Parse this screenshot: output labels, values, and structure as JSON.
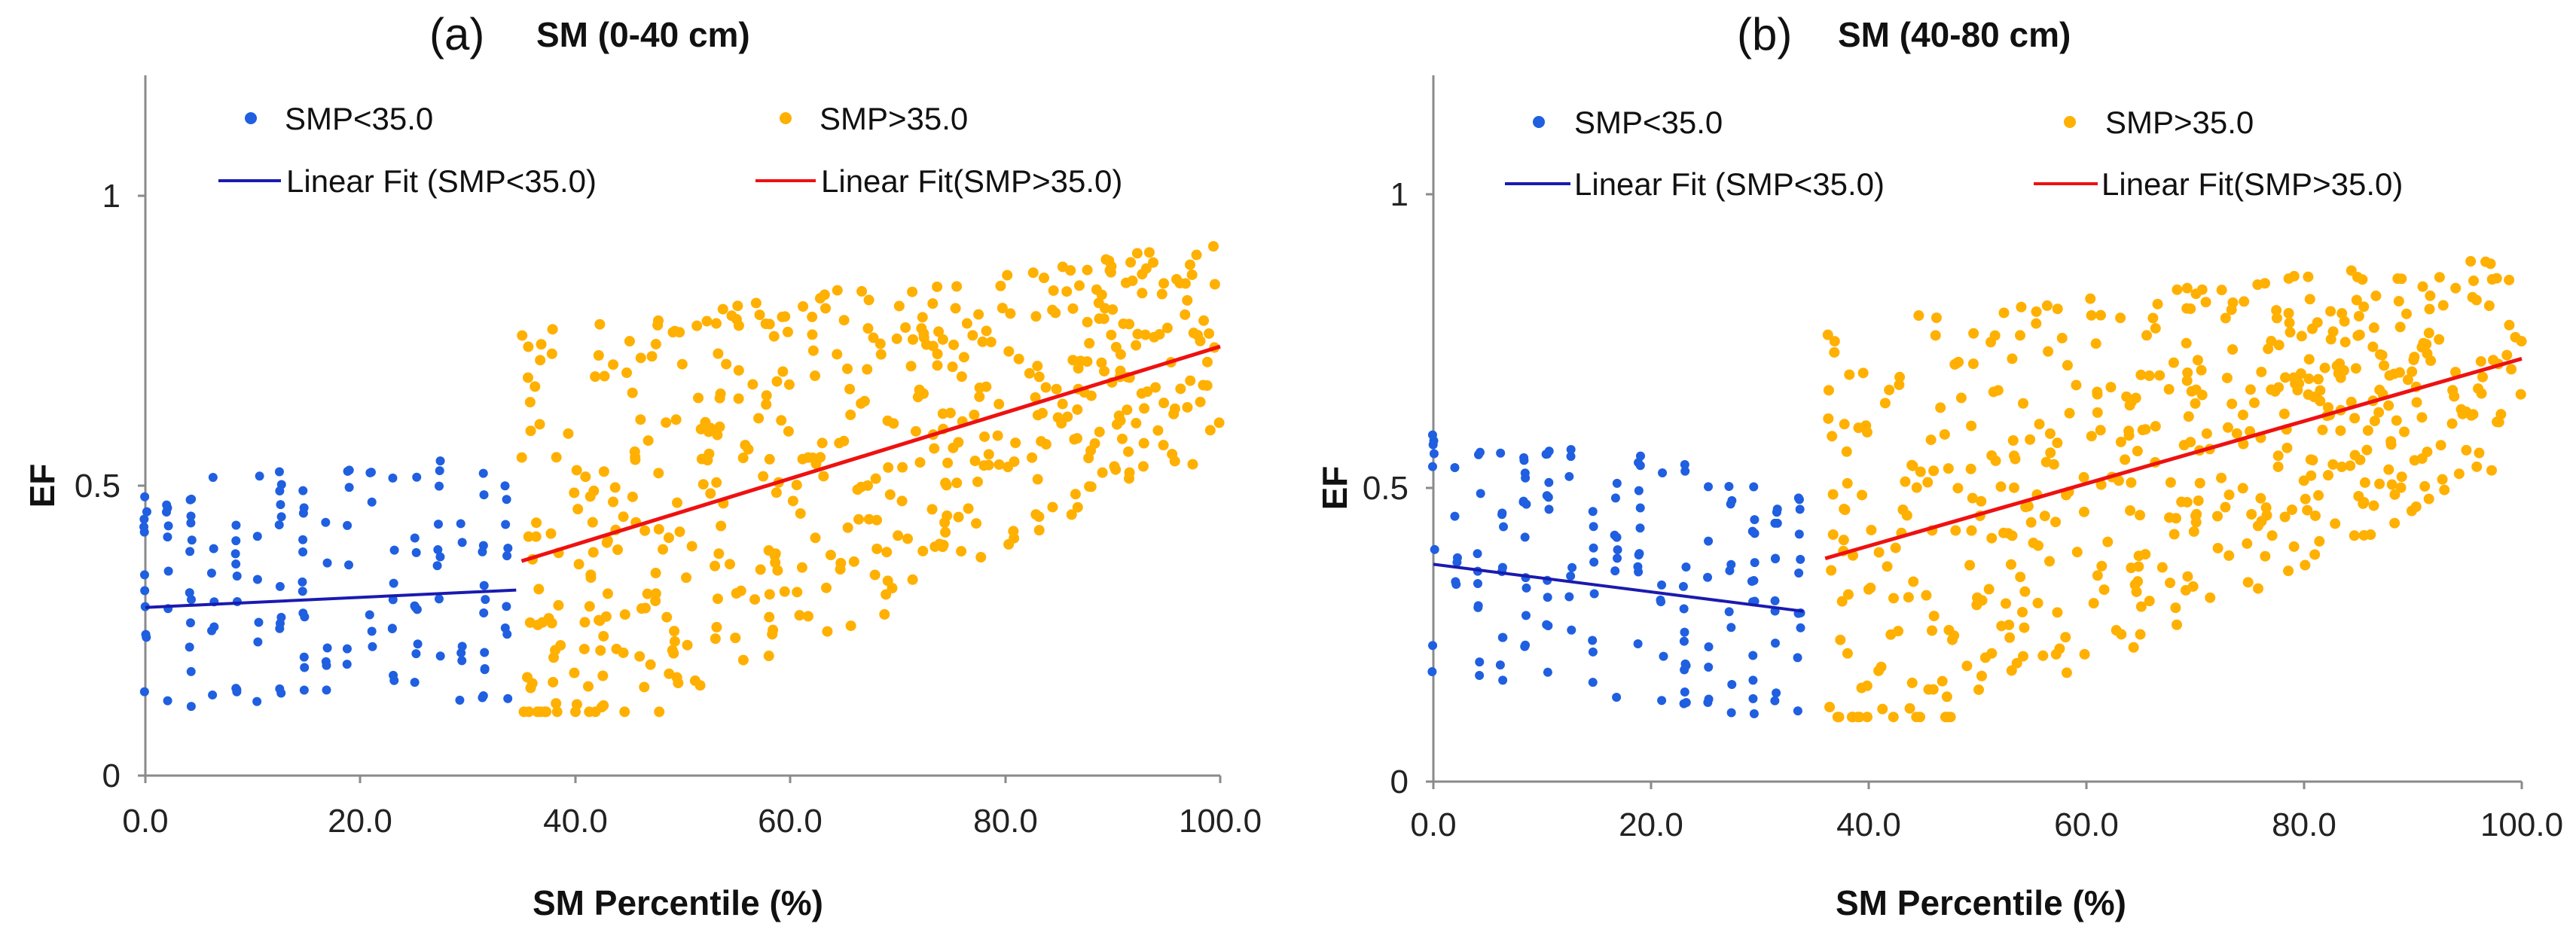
{
  "colors": {
    "low": "#1f5fe0",
    "high": "#ffb000",
    "fit_low": "#1a1ab0",
    "fit_high": "#ee1111"
  },
  "chart_data": [
    {
      "type": "scatter",
      "panel_label": "(a)",
      "title": "SM (0-40 cm)",
      "xlabel": "SM Percentile (%)",
      "ylabel": "EF",
      "xlim": [
        0,
        100
      ],
      "ylim": [
        0,
        1.2
      ],
      "x_ticks": [
        "0.0",
        "20.0",
        "40.0",
        "60.0",
        "80.0",
        "100.0"
      ],
      "y_ticks": [
        "0",
        "0.5",
        "1"
      ],
      "series": [
        {
          "name": "SMP<35.0",
          "kind": "points",
          "x_range": [
            0,
            35
          ],
          "fit": [
            [
              0,
              0.29
            ],
            [
              34.5,
              0.32
            ]
          ]
        },
        {
          "name": "SMP>35.0",
          "kind": "points",
          "x_range": [
            35,
            100
          ],
          "fit": [
            [
              35,
              0.37
            ],
            [
              100,
              0.74
            ]
          ]
        },
        {
          "name": "Linear Fit (SMP<35.0)",
          "kind": "line",
          "points": [
            [
              0,
              0.29
            ],
            [
              34.5,
              0.32
            ]
          ]
        },
        {
          "name": "Linear Fit(SMP>35.0)",
          "kind": "line",
          "points": [
            [
              35,
              0.37
            ],
            [
              100,
              0.74
            ]
          ]
        }
      ]
    },
    {
      "type": "scatter",
      "panel_label": "(b)",
      "title": "SM (40-80 cm)",
      "xlabel": "SM Percentile (%)",
      "ylabel": "EF",
      "xlim": [
        0,
        100
      ],
      "ylim": [
        0,
        1.2
      ],
      "x_ticks": [
        "0.0",
        "20.0",
        "40.0",
        "60.0",
        "80.0",
        "100.0"
      ],
      "y_ticks": [
        "0",
        "0.5",
        "1"
      ],
      "series": [
        {
          "name": "SMP<35.0",
          "kind": "points",
          "x_range": [
            0,
            34
          ],
          "fit": [
            [
              0,
              0.37
            ],
            [
              34,
              0.29
            ]
          ]
        },
        {
          "name": "SMP>35.0",
          "kind": "points",
          "x_range": [
            36,
            100
          ],
          "fit": [
            [
              36,
              0.38
            ],
            [
              100,
              0.72
            ]
          ]
        },
        {
          "name": "Linear Fit (SMP<35.0)",
          "kind": "line",
          "points": [
            [
              0,
              0.37
            ],
            [
              34,
              0.29
            ]
          ]
        },
        {
          "name": "Linear Fit(SMP>35.0)",
          "kind": "line",
          "points": [
            [
              36,
              0.38
            ],
            [
              100,
              0.72
            ]
          ]
        }
      ]
    }
  ]
}
